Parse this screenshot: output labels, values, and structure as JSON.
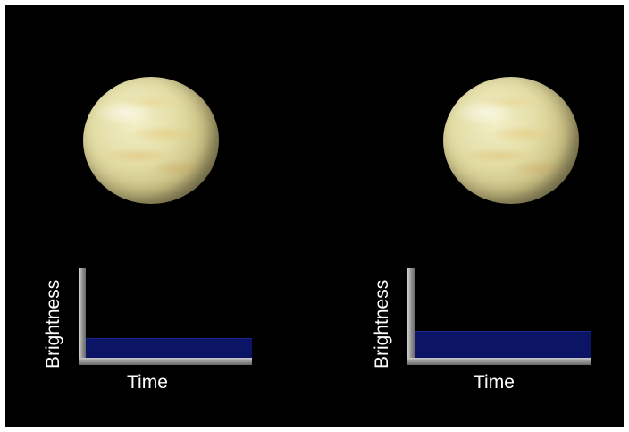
{
  "panels": [
    {
      "id": "left",
      "xlabel": "Time",
      "ylabel": "Brightness",
      "brightness": 0.22
    },
    {
      "id": "right",
      "xlabel": "Time",
      "ylabel": "Brightness",
      "brightness": 0.3
    }
  ],
  "colors": {
    "background": "#000000",
    "planet": "#e2dca4",
    "bar": "#0c1466",
    "axis": "#8c8c8c"
  }
}
